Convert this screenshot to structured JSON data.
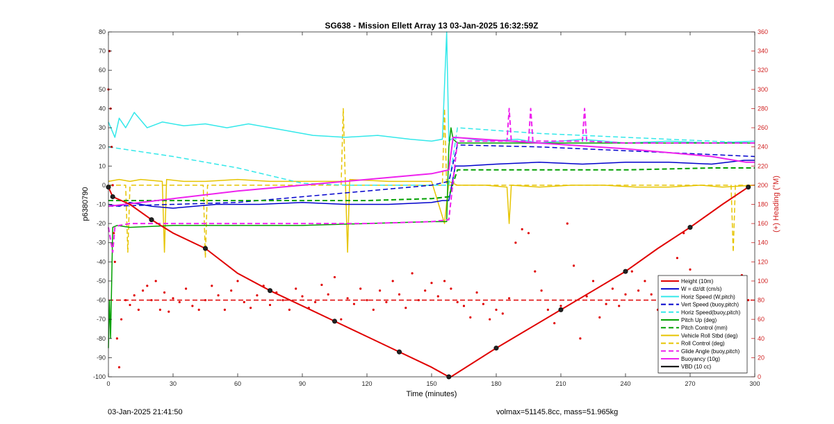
{
  "footer": {
    "left": "03-Jan-2025 21:41:50",
    "right": "volmax=51145.8cc, mass=51.965kg"
  },
  "chart_data": {
    "type": "line",
    "title": "SG638 - Mission Ellett Array 13 03-Jan-2025 16:32:59Z",
    "xlabel": "Time (minutes)",
    "ylabel": "p6380790",
    "y2label": "(+) Heading (°M)",
    "xlim": [
      0,
      300
    ],
    "ylim": [
      -100,
      80
    ],
    "y2lim": [
      0,
      360
    ],
    "xticks": [
      0,
      30,
      60,
      90,
      120,
      150,
      180,
      210,
      240,
      270,
      300
    ],
    "yticks": [
      -100,
      -90,
      -80,
      -70,
      -60,
      -50,
      -40,
      -30,
      -20,
      -10,
      0,
      10,
      20,
      30,
      40,
      50,
      60,
      70,
      80
    ],
    "y2ticks": [
      0,
      20,
      40,
      60,
      80,
      100,
      120,
      140,
      160,
      180,
      200,
      220,
      240,
      260,
      280,
      300,
      320,
      340,
      360
    ],
    "grid": false,
    "legend_position": "bottom-right",
    "colors": {
      "red": "#e00000",
      "blue": "#0000cc",
      "cyan": "#33e8ea",
      "green": "#00a000",
      "yellow": "#e6c400",
      "magenta": "#ee22ee",
      "black": "#000000",
      "right_axis": "#d02020"
    },
    "series": [
      {
        "name": "Height (10m)",
        "color": "#e00000",
        "style": "solid",
        "width": 2,
        "x": [
          0,
          2,
          10,
          20,
          30,
          45,
          60,
          75,
          90,
          105,
          120,
          135,
          150,
          158,
          159,
          180,
          195,
          210,
          225,
          240,
          255,
          270,
          285,
          297
        ],
        "y": [
          -1,
          -6,
          -10,
          -18,
          -25,
          -33,
          -46,
          -55,
          -63,
          -71,
          -79,
          -87,
          -95,
          -100,
          -100,
          -85,
          -75,
          -65,
          -55,
          -45,
          -33,
          -22,
          -10,
          -1
        ]
      },
      {
        "name": "W = dz/dt (cm/s)",
        "color": "#0000cc",
        "style": "solid",
        "width": 1.5,
        "x": [
          0,
          5,
          10,
          20,
          30,
          50,
          70,
          90,
          110,
          130,
          150,
          155,
          158,
          161,
          165,
          180,
          200,
          220,
          240,
          260,
          280,
          295,
          300
        ],
        "y": [
          -10,
          -11,
          -9,
          -11,
          -12,
          -10,
          -10,
          -9,
          -10,
          -10,
          -9,
          -8,
          -8,
          10,
          10,
          11,
          12,
          11,
          12,
          12,
          11,
          13,
          13
        ]
      },
      {
        "name": "Horiz Speed (W,pitch)",
        "color": "#33e8ea",
        "style": "solid",
        "width": 1.5,
        "x": [
          0,
          3,
          5,
          8,
          12,
          18,
          25,
          35,
          45,
          55,
          65,
          80,
          95,
          110,
          125,
          140,
          150,
          155,
          157,
          158,
          159,
          162,
          175,
          190,
          200,
          220,
          240,
          260,
          280,
          300
        ],
        "y": [
          33,
          25,
          35,
          30,
          38,
          30,
          33,
          31,
          32,
          30,
          32,
          29,
          26,
          25,
          26,
          24,
          23,
          24,
          80,
          23,
          24,
          25,
          23,
          24,
          22,
          24,
          22,
          23,
          22,
          23
        ]
      },
      {
        "name": "Vert Speed (buoy,pitch)",
        "color": "#0000cc",
        "style": "dashed",
        "width": 1.5,
        "x": [
          0,
          30,
          60,
          90,
          120,
          150,
          158,
          162,
          200,
          240,
          280,
          300
        ],
        "y": [
          -11,
          -10,
          -9,
          -6,
          -3,
          0,
          2,
          21,
          20,
          18,
          16,
          15
        ]
      },
      {
        "name": "Horiz Speed(buoy,pitch)",
        "color": "#33e8ea",
        "style": "dashed",
        "width": 1.5,
        "x": [
          0,
          30,
          60,
          90,
          110,
          158,
          162,
          200,
          240,
          280,
          300
        ],
        "y": [
          20,
          15,
          9,
          1,
          0,
          0,
          30,
          27,
          25,
          23,
          22
        ]
      },
      {
        "name": "Pitch Up (deg)",
        "color": "#00a000",
        "style": "solid",
        "width": 1.5,
        "x": [
          0,
          0.5,
          1,
          2,
          4,
          10,
          30,
          60,
          90,
          120,
          150,
          157,
          158,
          159,
          160,
          162,
          180,
          200,
          240,
          280,
          300
        ],
        "y": [
          -85,
          -60,
          -80,
          -22,
          -21,
          -22,
          -21,
          -21,
          -21,
          -20,
          -19,
          -19,
          20,
          30,
          24,
          22,
          22,
          22,
          22,
          22,
          22
        ]
      },
      {
        "name": "Pitch Control (mm)",
        "color": "#00a000",
        "style": "dashed",
        "width": 2,
        "x": [
          0,
          30,
          60,
          90,
          120,
          150,
          158,
          162,
          180,
          200,
          240,
          280,
          300
        ],
        "y": [
          -8,
          -8,
          -8,
          -8,
          -8,
          -7,
          -6,
          8,
          8,
          8,
          8,
          9,
          9
        ]
      },
      {
        "name": "Vehicle Roll Stbd (deg)",
        "color": "#e6c400",
        "style": "solid",
        "width": 1.5,
        "x": [
          0,
          5,
          10,
          15,
          25,
          26,
          27,
          35,
          45,
          60,
          75,
          90,
          105,
          110,
          111,
          112,
          130,
          150,
          156,
          158,
          162,
          175,
          185,
          186,
          187,
          200,
          215,
          230,
          245,
          260,
          275,
          285,
          300
        ],
        "y": [
          2,
          3,
          2,
          3,
          2,
          -35,
          3,
          2,
          2,
          3,
          2,
          2,
          2,
          2,
          -35,
          3,
          2,
          2,
          -20,
          2,
          0,
          0,
          -1,
          -20,
          0,
          -1,
          0,
          0,
          -1,
          -1,
          0,
          -1,
          0
        ]
      },
      {
        "name": "Roll Control (deg)",
        "color": "#e6c400",
        "style": "dashed",
        "width": 1.5,
        "x": [
          0,
          8,
          9,
          10,
          30,
          44,
          45,
          46,
          60,
          90,
          108,
          109,
          110,
          130,
          155,
          156,
          157,
          170,
          190,
          210,
          240,
          260,
          289,
          290,
          291,
          300
        ],
        "y": [
          0,
          0,
          -35,
          0,
          0,
          0,
          -38,
          0,
          0,
          0,
          0,
          40,
          0,
          0,
          0,
          40,
          0,
          0,
          0,
          0,
          0,
          0,
          0,
          -35,
          0,
          0
        ]
      },
      {
        "name": "Glide Angle (buoy,pitch)",
        "color": "#ee22ee",
        "style": "dashed",
        "width": 2,
        "x": [
          0,
          2,
          3,
          5,
          10,
          30,
          60,
          90,
          120,
          150,
          158,
          162,
          185,
          186,
          187,
          195,
          196,
          197,
          220,
          221,
          222,
          240,
          260,
          290,
          300
        ],
        "y": [
          -22,
          -35,
          -22,
          -21,
          -20,
          -20,
          -20,
          -20,
          -20,
          -19,
          -18,
          23,
          23,
          40,
          23,
          23,
          40,
          23,
          23,
          40,
          23,
          22,
          22,
          22,
          22
        ]
      },
      {
        "name": "Buoyancy (10g)",
        "color": "#ee22ee",
        "style": "solid",
        "width": 2,
        "x": [
          0,
          30,
          60,
          90,
          120,
          150,
          158,
          160,
          200,
          240,
          280,
          296,
          300
        ],
        "y": [
          -11,
          -7,
          -3,
          0,
          3,
          6,
          8,
          25,
          22,
          19,
          15,
          12,
          12
        ]
      },
      {
        "name": "VBD (10 cc)",
        "color": "#000000",
        "style": "solid",
        "width": 2,
        "x": [
          0,
          1,
          3,
          5,
          30,
          60,
          90,
          120,
          150,
          158,
          161,
          170,
          180,
          200,
          220,
          240,
          260,
          280,
          296,
          297,
          300
        ],
        "y": [
          15,
          -5,
          -9,
          -9,
          -9,
          -9,
          -9,
          -9,
          -9,
          -9,
          10,
          11,
          11,
          12,
          13,
          13,
          14,
          14,
          14,
          15,
          15
        ]
      }
    ],
    "heading_series": {
      "name": "Heading",
      "axis": "right",
      "color": "#e00000",
      "style": "markers",
      "reference_line": 80,
      "x": [
        0,
        0.5,
        1,
        1.5,
        2,
        2.5,
        3,
        4,
        5,
        6,
        8,
        10,
        12,
        14,
        16,
        18,
        20,
        22,
        24,
        26,
        28,
        30,
        33,
        36,
        39,
        42,
        45,
        48,
        51,
        54,
        57,
        60,
        63,
        66,
        69,
        72,
        75,
        78,
        81,
        84,
        87,
        90,
        93,
        96,
        99,
        102,
        105,
        108,
        111,
        114,
        117,
        120,
        123,
        126,
        129,
        132,
        135,
        138,
        141,
        144,
        147,
        150,
        153,
        156,
        159,
        162,
        165,
        168,
        171,
        174,
        177,
        180,
        183,
        186,
        189,
        192,
        195,
        198,
        201,
        204,
        207,
        210,
        213,
        216,
        219,
        222,
        225,
        228,
        231,
        234,
        237,
        240,
        243,
        246,
        249,
        252,
        255,
        258,
        261,
        264,
        267,
        270,
        273,
        276,
        279,
        282,
        285,
        288,
        291,
        294,
        297
      ],
      "y": [
        300,
        340,
        280,
        240,
        200,
        150,
        120,
        40,
        10,
        60,
        80,
        75,
        85,
        70,
        90,
        95,
        80,
        100,
        70,
        88,
        68,
        82,
        78,
        92,
        74,
        70,
        80,
        95,
        85,
        70,
        90,
        100,
        78,
        72,
        85,
        95,
        75,
        88,
        80,
        70,
        92,
        84,
        72,
        78,
        96,
        86,
        104,
        60,
        82,
        76,
        92,
        80,
        70,
        90,
        78,
        100,
        86,
        72,
        108,
        80,
        90,
        98,
        84,
        100,
        92,
        78,
        74,
        62,
        88,
        76,
        60,
        70,
        66,
        82,
        140,
        154,
        150,
        110,
        90,
        70,
        56,
        74,
        160,
        116,
        40,
        84,
        100,
        62,
        76,
        92,
        74,
        86,
        110,
        90,
        100,
        86,
        70,
        80,
        94,
        124,
        150,
        112,
        70,
        80,
        64,
        90,
        84,
        100,
        92,
        106,
        80
      ]
    }
  }
}
